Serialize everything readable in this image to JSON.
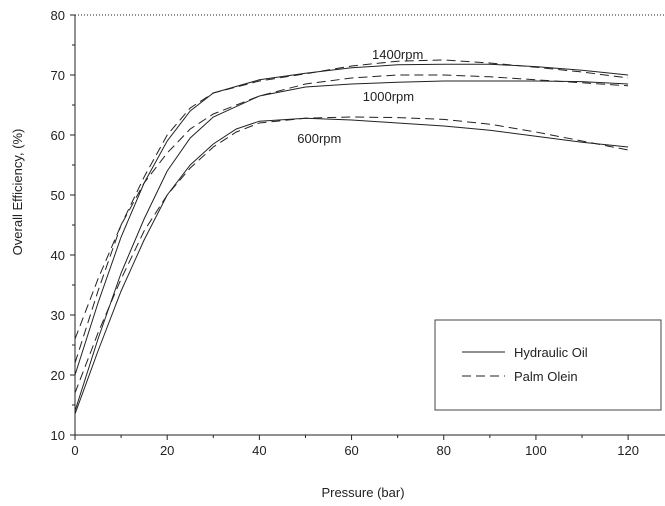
{
  "chart_data": {
    "type": "line",
    "title": "",
    "xlabel": "Pressure (bar)",
    "ylabel": "Overall Efficiency, (%)",
    "xlim": [
      0,
      128
    ],
    "ylim": [
      10,
      80
    ],
    "xticks": [
      0,
      20,
      40,
      60,
      80,
      100,
      120
    ],
    "yticks": [
      10,
      20,
      30,
      40,
      50,
      60,
      70,
      80
    ],
    "grid": false,
    "legend_position": "bottom-right",
    "legend": [
      {
        "label": "Hydraulic Oil",
        "style": "solid"
      },
      {
        "label": "Palm Olein",
        "style": "dashed"
      }
    ],
    "annotations": [
      {
        "text": "1400rpm",
        "x": 70,
        "y": 73.5
      },
      {
        "text": "1000rpm",
        "x": 68,
        "y": 66.5
      },
      {
        "text": "600rpm",
        "x": 53,
        "y": 59.5
      }
    ],
    "series": [
      {
        "fluid": "Hydraulic Oil",
        "speed": "1400rpm",
        "style": "solid",
        "x": [
          0,
          5,
          10,
          15,
          20,
          25,
          30,
          40,
          50,
          60,
          70,
          80,
          90,
          100,
          110,
          120
        ],
        "y": [
          20,
          32,
          43,
          52,
          59,
          64,
          67,
          69.2,
          70.3,
          71.2,
          71.7,
          71.8,
          71.8,
          71.4,
          70.8,
          70
        ]
      },
      {
        "fluid": "Palm Olein",
        "speed": "1400rpm",
        "style": "dashed",
        "x": [
          0,
          5,
          10,
          15,
          20,
          25,
          30,
          40,
          50,
          60,
          70,
          80,
          90,
          100,
          110,
          120
        ],
        "y": [
          22,
          34,
          45,
          53,
          60,
          64.5,
          67,
          69,
          70.2,
          71.5,
          72.3,
          72.5,
          72,
          71.3,
          70.5,
          69.5
        ]
      },
      {
        "fluid": "Hydraulic Oil",
        "speed": "1000rpm",
        "style": "solid",
        "x": [
          0,
          5,
          10,
          15,
          20,
          25,
          30,
          40,
          50,
          60,
          70,
          80,
          90,
          100,
          110,
          120
        ],
        "y": [
          14,
          26,
          37,
          46,
          54,
          59.5,
          63,
          66.5,
          68,
          68.5,
          68.8,
          69,
          69,
          69,
          68.9,
          68.5
        ]
      },
      {
        "fluid": "Palm Olein",
        "speed": "1000rpm",
        "style": "dashed",
        "x": [
          0,
          5,
          10,
          15,
          20,
          25,
          30,
          40,
          50,
          60,
          70,
          80,
          90,
          100,
          110,
          120
        ],
        "y": [
          26,
          36,
          45,
          52,
          57,
          61,
          63.5,
          66.5,
          68.5,
          69.5,
          70,
          70,
          69.7,
          69.2,
          68.7,
          68.2
        ]
      },
      {
        "fluid": "Hydraulic Oil",
        "speed": "600rpm",
        "style": "solid",
        "x": [
          0,
          5,
          10,
          15,
          20,
          25,
          30,
          35,
          40,
          50,
          60,
          70,
          80,
          90,
          100,
          110,
          120
        ],
        "y": [
          13.5,
          24,
          34,
          42.5,
          50,
          55,
          58.5,
          61,
          62.3,
          62.8,
          62.5,
          62,
          61.5,
          60.8,
          59.8,
          58.8,
          58
        ]
      },
      {
        "fluid": "Palm Olein",
        "speed": "600rpm",
        "style": "dashed",
        "x": [
          0,
          5,
          10,
          15,
          20,
          25,
          30,
          35,
          40,
          50,
          60,
          70,
          80,
          90,
          100,
          110,
          120
        ],
        "y": [
          17,
          27,
          36,
          44,
          50,
          54.5,
          58,
          60.5,
          62,
          62.8,
          63,
          62.9,
          62.6,
          61.8,
          60.5,
          59,
          57.5
        ]
      }
    ]
  }
}
